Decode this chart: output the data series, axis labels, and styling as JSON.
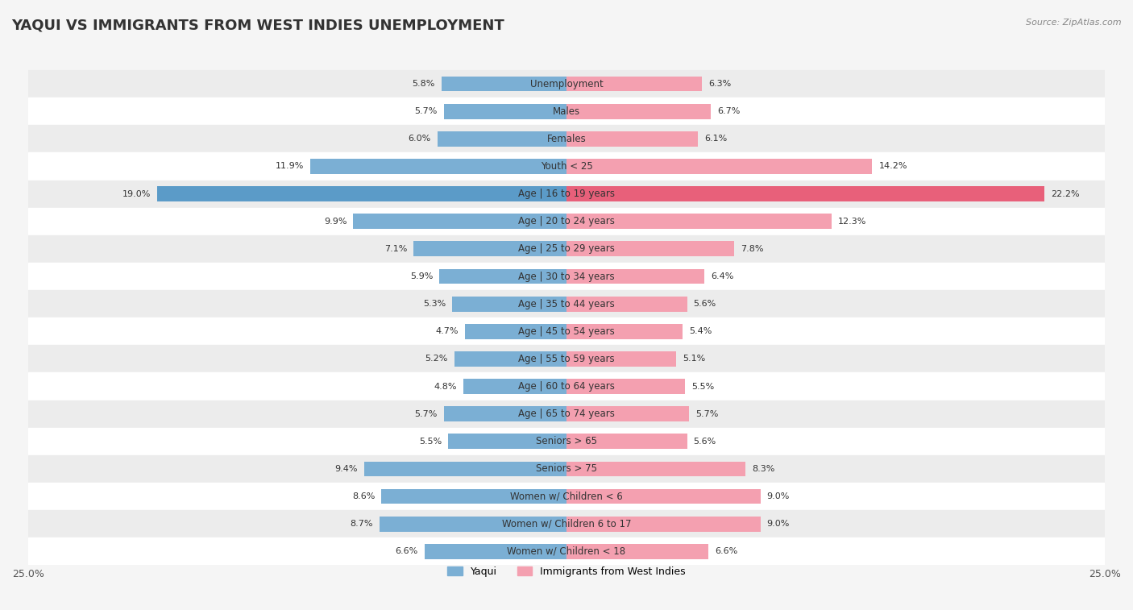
{
  "title": "YAQUI VS IMMIGRANTS FROM WEST INDIES UNEMPLOYMENT",
  "source": "Source: ZipAtlas.com",
  "categories": [
    "Unemployment",
    "Males",
    "Females",
    "Youth < 25",
    "Age | 16 to 19 years",
    "Age | 20 to 24 years",
    "Age | 25 to 29 years",
    "Age | 30 to 34 years",
    "Age | 35 to 44 years",
    "Age | 45 to 54 years",
    "Age | 55 to 59 years",
    "Age | 60 to 64 years",
    "Age | 65 to 74 years",
    "Seniors > 65",
    "Seniors > 75",
    "Women w/ Children < 6",
    "Women w/ Children 6 to 17",
    "Women w/ Children < 18"
  ],
  "yaqui": [
    5.8,
    5.7,
    6.0,
    11.9,
    19.0,
    9.9,
    7.1,
    5.9,
    5.3,
    4.7,
    5.2,
    4.8,
    5.7,
    5.5,
    9.4,
    8.6,
    8.7,
    6.6
  ],
  "west_indies": [
    6.3,
    6.7,
    6.1,
    14.2,
    22.2,
    12.3,
    7.8,
    6.4,
    5.6,
    5.4,
    5.1,
    5.5,
    5.7,
    5.6,
    8.3,
    9.0,
    9.0,
    6.6
  ],
  "yaqui_color": "#7bafd4",
  "west_indies_color": "#f4a0b0",
  "yaqui_highlight_color": "#5b9bc8",
  "west_indies_highlight_color": "#e8607a",
  "background_color": "#f5f5f5",
  "row_alt_color": "#ffffff",
  "row_main_color": "#ececec",
  "xlim": 25.0,
  "legend_label_yaqui": "Yaqui",
  "legend_label_west_indies": "Immigrants from West Indies"
}
